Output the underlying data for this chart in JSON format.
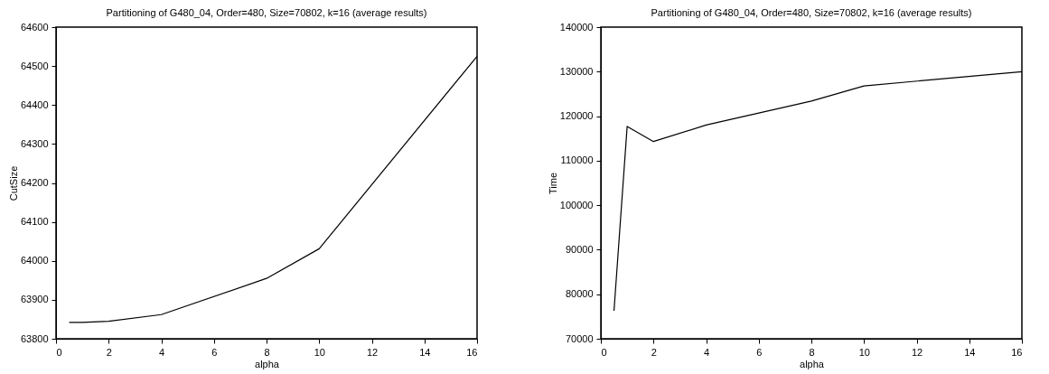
{
  "chart_data": [
    {
      "type": "line",
      "title": "Partitioning of G480_04, Order=480, Size=70802, k=16 (average results)",
      "xlabel": "alpha",
      "ylabel": "CutSize",
      "x": [
        0.5,
        1,
        2,
        4,
        8,
        10,
        16
      ],
      "series": [
        {
          "color": "#000000",
          "values": [
            63842,
            63842,
            63845,
            63862,
            63955,
            64031,
            64525
          ]
        }
      ],
      "xlim": [
        0,
        16
      ],
      "xticks": [
        0,
        2,
        4,
        6,
        8,
        10,
        12,
        14,
        16
      ],
      "ylim": [
        63800,
        64600
      ],
      "yticks": [
        63800,
        63900,
        64000,
        64100,
        64200,
        64300,
        64400,
        64500,
        64600
      ],
      "grid": false
    },
    {
      "type": "line",
      "title": "Partitioning of G480_04, Order=480, Size=70802, k=16 (average results)",
      "xlabel": "alpha",
      "ylabel": "Time",
      "x": [
        0.5,
        1,
        2,
        4,
        8,
        10,
        16
      ],
      "series": [
        {
          "color": "#000000",
          "values": [
            76300,
            117700,
            114300,
            118000,
            123400,
            126800,
            130000
          ]
        }
      ],
      "xlim": [
        0,
        16
      ],
      "xticks": [
        0,
        2,
        4,
        6,
        8,
        10,
        12,
        14,
        16
      ],
      "ylim": [
        70000,
        140000
      ],
      "yticks": [
        70000,
        80000,
        90000,
        100000,
        110000,
        120000,
        130000,
        140000
      ],
      "grid": false
    }
  ]
}
